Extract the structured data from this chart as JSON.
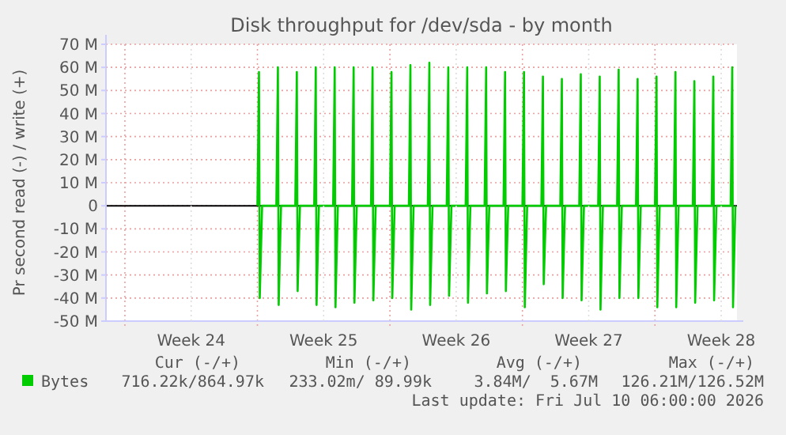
{
  "chart_data": {
    "type": "line",
    "title": "Disk throughput for /dev/sda - by month",
    "ylabel": "Pr second read (-) / write (+)",
    "xlim": [
      "2026-06-07T00:00",
      "2026-07-10T08:00"
    ],
    "xticks": [
      {
        "value": "2026-06-11T12:00",
        "label": "Week 24"
      },
      {
        "value": "2026-06-18T12:00",
        "label": "Week 25"
      },
      {
        "value": "2026-06-25T12:00",
        "label": "Week 26"
      },
      {
        "value": "2026-07-02T12:00",
        "label": "Week 27"
      },
      {
        "value": "2026-07-09T12:00",
        "label": "Week 28"
      }
    ],
    "ylim": [
      -50,
      70
    ],
    "yticks": [
      {
        "value": -50,
        "label": "-50 M"
      },
      {
        "value": -40,
        "label": "-40 M"
      },
      {
        "value": -30,
        "label": "-30 M"
      },
      {
        "value": -20,
        "label": "-20 M"
      },
      {
        "value": -10,
        "label": "-10 M"
      },
      0,
      {
        "value": 10,
        "label": "10 M"
      },
      {
        "value": 20,
        "label": "20 M"
      },
      {
        "value": 30,
        "label": "30 M"
      },
      {
        "value": 40,
        "label": "40 M"
      },
      {
        "value": 50,
        "label": "50 M"
      },
      {
        "value": 60,
        "label": "60 M"
      },
      {
        "value": 70,
        "label": "70 M"
      }
    ],
    "grid": true,
    "legend": "bottom",
    "marker": "none",
    "line_style": "solid",
    "ref_lines": [
      {
        "axis": "y",
        "value": 0,
        "color": "#000000"
      },
      {
        "axis": "x",
        "value": "2026-06-08T00:00",
        "color": "#e8a0a0",
        "line_style": "dotted"
      },
      {
        "axis": "x",
        "value": "2026-06-15T00:00",
        "color": "#e8a0a0",
        "line_style": "dotted"
      },
      {
        "axis": "x",
        "value": "2026-06-22T00:00",
        "color": "#e8a0a0",
        "line_style": "dotted"
      },
      {
        "axis": "x",
        "value": "2026-06-29T00:00",
        "color": "#e8a0a0",
        "line_style": "dotted"
      },
      {
        "axis": "x",
        "value": "2026-07-06T00:00",
        "color": "#e8a0a0",
        "line_style": "dotted"
      }
    ],
    "series": [
      {
        "name": "Bytes",
        "color": "#00cc00",
        "x": [
          "2026-06-15T00:00",
          "2026-06-15T02:00",
          "2026-06-15T03:00",
          "2026-06-15T06:00",
          "2026-06-16T00:00",
          "2026-06-16T02:00",
          "2026-06-16T03:00",
          "2026-06-16T06:00",
          "2026-06-17T00:00",
          "2026-06-17T02:00",
          "2026-06-17T03:00",
          "2026-06-17T06:00",
          "2026-06-18T00:00",
          "2026-06-18T02:00",
          "2026-06-18T03:00",
          "2026-06-18T06:00",
          "2026-06-19T00:00",
          "2026-06-19T02:00",
          "2026-06-19T03:00",
          "2026-06-19T06:00",
          "2026-06-20T00:00",
          "2026-06-20T02:00",
          "2026-06-20T03:00",
          "2026-06-20T06:00",
          "2026-06-21T00:00",
          "2026-06-21T02:00",
          "2026-06-21T03:00",
          "2026-06-21T06:00",
          "2026-06-22T00:00",
          "2026-06-22T02:00",
          "2026-06-22T03:00",
          "2026-06-22T06:00",
          "2026-06-23T00:00",
          "2026-06-23T02:00",
          "2026-06-23T03:00",
          "2026-06-23T06:00",
          "2026-06-24T00:00",
          "2026-06-24T02:00",
          "2026-06-24T03:00",
          "2026-06-24T06:00",
          "2026-06-25T00:00",
          "2026-06-25T02:00",
          "2026-06-25T03:00",
          "2026-06-25T06:00",
          "2026-06-26T00:00",
          "2026-06-26T02:00",
          "2026-06-26T03:00",
          "2026-06-26T06:00",
          "2026-06-27T00:00",
          "2026-06-27T02:00",
          "2026-06-27T03:00",
          "2026-06-27T06:00",
          "2026-06-28T00:00",
          "2026-06-28T02:00",
          "2026-06-28T03:00",
          "2026-06-28T06:00",
          "2026-06-29T00:00",
          "2026-06-29T02:00",
          "2026-06-29T03:00",
          "2026-06-29T06:00",
          "2026-06-30T00:00",
          "2026-06-30T02:00",
          "2026-06-30T03:00",
          "2026-06-30T06:00",
          "2026-07-01T00:00",
          "2026-07-01T02:00",
          "2026-07-01T03:00",
          "2026-07-01T06:00",
          "2026-07-02T00:00",
          "2026-07-02T02:00",
          "2026-07-02T03:00",
          "2026-07-02T06:00",
          "2026-07-03T00:00",
          "2026-07-03T02:00",
          "2026-07-03T03:00",
          "2026-07-03T06:00",
          "2026-07-04T00:00",
          "2026-07-04T02:00",
          "2026-07-04T03:00",
          "2026-07-04T06:00",
          "2026-07-05T00:00",
          "2026-07-05T02:00",
          "2026-07-05T03:00",
          "2026-07-05T06:00",
          "2026-07-06T00:00",
          "2026-07-06T02:00",
          "2026-07-06T03:00",
          "2026-07-06T06:00",
          "2026-07-07T00:00",
          "2026-07-07T02:00",
          "2026-07-07T03:00",
          "2026-07-07T06:00",
          "2026-07-08T00:00",
          "2026-07-08T02:00",
          "2026-07-08T03:00",
          "2026-07-08T06:00",
          "2026-07-09T00:00",
          "2026-07-09T02:00",
          "2026-07-09T03:00",
          "2026-07-09T06:00",
          "2026-07-10T00:00",
          "2026-07-10T02:00",
          "2026-07-10T03:00",
          "2026-07-10T06:00"
        ],
        "values": [
          0,
          58,
          -40,
          0,
          0,
          60,
          -43,
          0,
          0,
          58,
          -37,
          0,
          0,
          60,
          -43,
          0,
          0,
          60,
          -44,
          0,
          0,
          60,
          -42,
          0,
          0,
          60,
          -41,
          0,
          0,
          58,
          -40,
          0,
          0,
          61,
          -45,
          0,
          0,
          62,
          -43,
          0,
          0,
          60,
          -39,
          0,
          0,
          60,
          -42,
          0,
          0,
          60,
          -38,
          0,
          0,
          58,
          -37,
          0,
          0,
          58,
          -44,
          0,
          0,
          56,
          -34,
          0,
          0,
          55,
          -40,
          0,
          0,
          57,
          -41,
          0,
          0,
          56,
          -45,
          0,
          0,
          59,
          -40,
          0,
          0,
          55,
          -40,
          0,
          0,
          56,
          -44,
          0,
          0,
          58,
          -44,
          0,
          0,
          54,
          -42,
          0,
          0,
          56,
          -41,
          0,
          0,
          60,
          -44,
          0
        ]
      }
    ],
    "annotations": [
      "Cur (-/+)",
      "716.22k/864.97k",
      "Min (-/+)",
      "233.02m/ 89.99k",
      "Avg (-/+)",
      "3.84M/  5.67M",
      "Max (-/+)",
      "126.21M/126.52M",
      "Last update: Fri Jul 10 06:00:00 2026"
    ]
  }
}
